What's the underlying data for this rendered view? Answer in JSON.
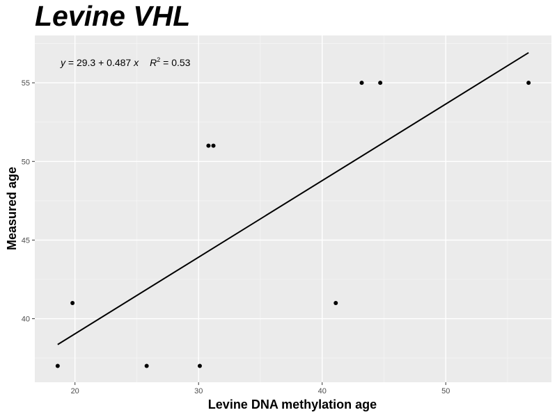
{
  "chart_data": {
    "type": "scatter",
    "title": "Levine VHL",
    "xlabel": "Levine DNA methylation age",
    "ylabel": "Measured age",
    "xlim": [
      16.75,
      58.55
    ],
    "ylim": [
      35.96,
      58.01
    ],
    "x_ticks": [
      20,
      30,
      40,
      50
    ],
    "y_ticks": [
      40,
      45,
      50,
      55
    ],
    "x_tick_labels": [
      "20",
      "30",
      "40",
      "50"
    ],
    "y_tick_labels": [
      "40",
      "45",
      "50",
      "55"
    ],
    "grid": true,
    "points": [
      {
        "x": 18.6,
        "y": 37
      },
      {
        "x": 19.8,
        "y": 41
      },
      {
        "x": 25.8,
        "y": 37
      },
      {
        "x": 30.1,
        "y": 37
      },
      {
        "x": 30.8,
        "y": 51
      },
      {
        "x": 31.2,
        "y": 51
      },
      {
        "x": 41.1,
        "y": 41
      },
      {
        "x": 43.2,
        "y": 55
      },
      {
        "x": 44.7,
        "y": 55
      },
      {
        "x": 56.7,
        "y": 55
      }
    ],
    "fit_line": {
      "intercept": 29.3,
      "slope": 0.487,
      "x_range": [
        18.6,
        56.7
      ]
    },
    "equation": {
      "y_var": "y",
      "eq_part": " = 29.3 + 0.487 ",
      "x_var": "x",
      "r_var": "R",
      "r_exp": "2",
      "r2_part": " = 0.53"
    },
    "colors": {
      "panel": "#ebebeb",
      "grid_major": "#ffffff",
      "grid_minor": "#f5f5f5",
      "points": "#000000",
      "line": "#000000"
    }
  }
}
